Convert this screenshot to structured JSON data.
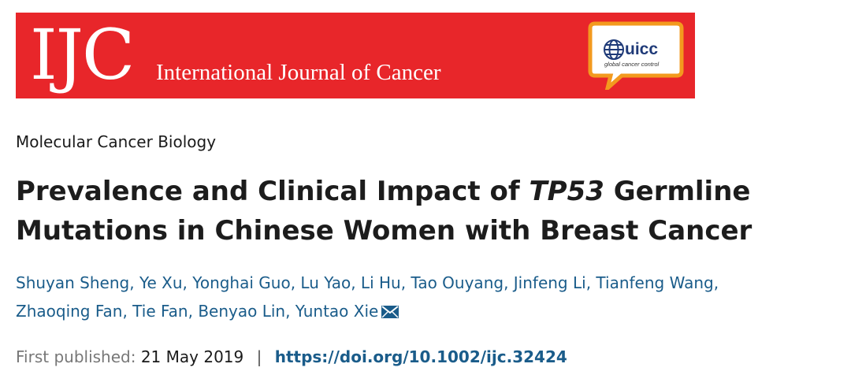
{
  "banner": {
    "logo_text": "IJC",
    "journal_name": "International Journal of Cancer",
    "partner_logo_text": "uicc",
    "partner_tagline": "global cancer control",
    "brand_color": "#e8262a",
    "badge_color": "#f39a1e"
  },
  "article": {
    "section": "Molecular Cancer Biology",
    "title_part1": "Prevalence and Clinical Impact of ",
    "title_gene": "TP53",
    "title_part2": " Germline Mutations in Chinese Women with Breast Cancer",
    "authors": [
      "Shuyan Sheng",
      "Ye Xu",
      "Yonghai Guo",
      "Lu Yao",
      "Li Hu",
      "Tao Ouyang",
      "Jinfeng Li",
      "Tianfeng Wang",
      "Zhaoqing Fan",
      "Tie Fan",
      "Benyao Lin",
      "Yuntao Xie"
    ],
    "author_separator": ",",
    "corresponding_icon": "envelope-icon",
    "published_label": "First published:",
    "published_date": "21 May 2019",
    "divider": "|",
    "doi": "https://doi.org/10.1002/ijc.32424",
    "link_color": "#1a5c8a"
  }
}
